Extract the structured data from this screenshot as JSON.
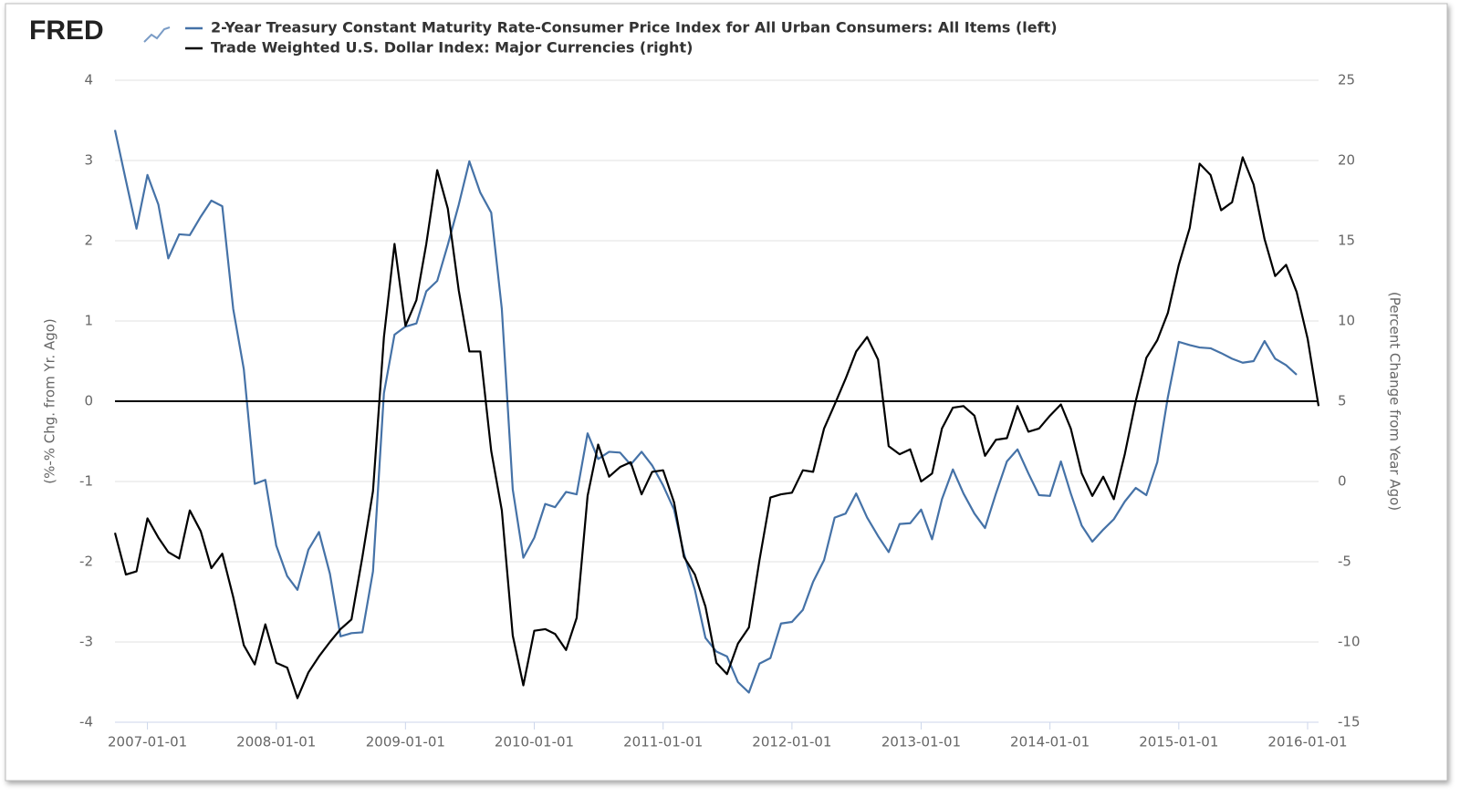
{
  "chart_data": {
    "type": "line",
    "logo": "FRED",
    "ylabel": "(%-% Chg. from Yr. Ago)",
    "y2label": "(Percent Change from Year Ago)",
    "xlim": [
      "2006-10-01",
      "2016-02-01"
    ],
    "xticks": [
      "2007-01-01",
      "2008-01-01",
      "2009-01-01",
      "2010-01-01",
      "2011-01-01",
      "2012-01-01",
      "2013-01-01",
      "2014-01-01",
      "2015-01-01",
      "2016-01-01"
    ],
    "ylim": [
      -4,
      4
    ],
    "yticks": [
      -4,
      -3,
      -2,
      -1,
      0,
      1,
      2,
      3,
      4
    ],
    "y2lim": [
      -15,
      25
    ],
    "y2ticks": [
      -15,
      -10,
      -5,
      0,
      5,
      10,
      15,
      20,
      25
    ],
    "grid": true,
    "hline": 0,
    "hline_color": "#000000",
    "x": [
      "2006-10-01",
      "2006-11-01",
      "2006-12-01",
      "2007-01-01",
      "2007-02-01",
      "2007-03-01",
      "2007-04-01",
      "2007-05-01",
      "2007-06-01",
      "2007-07-01",
      "2007-08-01",
      "2007-09-01",
      "2007-10-01",
      "2007-11-01",
      "2007-12-01",
      "2008-01-01",
      "2008-02-01",
      "2008-03-01",
      "2008-04-01",
      "2008-05-01",
      "2008-06-01",
      "2008-07-01",
      "2008-08-01",
      "2008-09-01",
      "2008-10-01",
      "2008-11-01",
      "2008-12-01",
      "2009-01-01",
      "2009-02-01",
      "2009-03-01",
      "2009-04-01",
      "2009-05-01",
      "2009-06-01",
      "2009-07-01",
      "2009-08-01",
      "2009-09-01",
      "2009-10-01",
      "2009-11-01",
      "2009-12-01",
      "2010-01-01",
      "2010-02-01",
      "2010-03-01",
      "2010-04-01",
      "2010-05-01",
      "2010-06-01",
      "2010-07-01",
      "2010-08-01",
      "2010-09-01",
      "2010-10-01",
      "2010-11-01",
      "2010-12-01",
      "2011-01-01",
      "2011-02-01",
      "2011-03-01",
      "2011-04-01",
      "2011-05-01",
      "2011-06-01",
      "2011-07-01",
      "2011-08-01",
      "2011-09-01",
      "2011-10-01",
      "2011-11-01",
      "2011-12-01",
      "2012-01-01",
      "2012-02-01",
      "2012-03-01",
      "2012-04-01",
      "2012-05-01",
      "2012-06-01",
      "2012-07-01",
      "2012-08-01",
      "2012-09-01",
      "2012-10-01",
      "2012-11-01",
      "2012-12-01",
      "2013-01-01",
      "2013-02-01",
      "2013-03-01",
      "2013-04-01",
      "2013-05-01",
      "2013-06-01",
      "2013-07-01",
      "2013-08-01",
      "2013-09-01",
      "2013-10-01",
      "2013-11-01",
      "2013-12-01",
      "2014-01-01",
      "2014-02-01",
      "2014-03-01",
      "2014-04-01",
      "2014-05-01",
      "2014-06-01",
      "2014-07-01",
      "2014-08-01",
      "2014-09-01",
      "2014-10-01",
      "2014-11-01",
      "2014-12-01",
      "2015-01-01",
      "2015-02-01",
      "2015-03-01",
      "2015-04-01",
      "2015-05-01",
      "2015-06-01",
      "2015-07-01",
      "2015-08-01",
      "2015-09-01",
      "2015-10-01",
      "2015-11-01",
      "2015-12-01",
      "2016-01-01",
      "2016-02-01"
    ],
    "series": [
      {
        "name": "2-Year Treasury Constant Maturity Rate-Consumer Price Index for All Urban Consumers: All Items (left)",
        "color": "#4572a7",
        "values": [
          3.38,
          2.75,
          2.15,
          2.82,
          2.45,
          1.78,
          2.08,
          2.07,
          2.3,
          2.5,
          2.43,
          1.15,
          0.4,
          -1.03,
          -0.98,
          -1.8,
          -2.18,
          -2.35,
          -1.85,
          -1.63,
          -2.15,
          -2.93,
          -2.89,
          -2.88,
          -2.12,
          0.1,
          0.83,
          0.93,
          0.97,
          1.37,
          1.5,
          1.95,
          2.45,
          2.99,
          2.6,
          2.35,
          1.15,
          -1.1,
          -1.95,
          -1.7,
          -1.28,
          -1.32,
          -1.13,
          -1.16,
          -0.4,
          -0.72,
          -0.63,
          -0.64,
          -0.79,
          -0.63,
          -0.8,
          -1.05,
          -1.35,
          -1.9,
          -2.35,
          -2.95,
          -3.12,
          -3.18,
          -3.5,
          -3.63,
          -3.27,
          -3.2,
          -2.77,
          -2.75,
          -2.6,
          -2.25,
          -1.98,
          -1.45,
          -1.4,
          -1.15,
          -1.45,
          -1.68,
          -1.88,
          -1.53,
          -1.52,
          -1.35,
          -1.72,
          -1.22,
          -0.85,
          -1.15,
          -1.4,
          -1.58,
          -1.15,
          -0.75,
          -0.6,
          -0.9,
          -1.17,
          -1.18,
          -0.75,
          -1.15,
          -1.55,
          -1.75,
          -1.6,
          -1.47,
          -1.25,
          -1.08,
          -1.17,
          -0.76,
          0.05,
          0.74,
          0.7,
          0.67,
          0.66,
          0.6,
          0.53,
          0.48,
          0.5,
          0.75,
          0.53,
          0.45,
          0.33,
          null,
          null
        ]
      },
      {
        "name": "Trade Weighted U.S. Dollar Index: Major Currencies (right)",
        "color": "#000000",
        "axis": "y2",
        "values": [
          -3.2,
          -5.8,
          -5.6,
          -2.3,
          -3.5,
          -4.4,
          -4.8,
          -1.8,
          -3.1,
          -5.4,
          -4.5,
          -7.2,
          -10.2,
          -11.4,
          -8.9,
          -11.3,
          -11.6,
          -13.5,
          -11.9,
          -10.9,
          -10.0,
          -9.2,
          -8.6,
          -4.7,
          -0.6,
          9.0,
          14.8,
          9.7,
          11.3,
          14.8,
          19.4,
          17.0,
          11.9,
          8.1,
          8.1,
          1.9,
          -1.8,
          -9.6,
          -12.7,
          -9.3,
          -9.2,
          -9.5,
          -10.5,
          -8.5,
          -0.9,
          2.3,
          0.3,
          0.9,
          1.2,
          -0.8,
          0.6,
          0.7,
          -1.3,
          -4.7,
          -5.8,
          -7.8,
          -11.3,
          -12.0,
          -10.1,
          -9.1,
          -4.9,
          -1.0,
          -0.8,
          -0.7,
          0.7,
          0.6,
          3.3,
          4.8,
          6.4,
          8.1,
          9.0,
          7.6,
          2.2,
          1.7,
          2.0,
          0.0,
          0.5,
          3.3,
          4.6,
          4.7,
          4.1,
          1.6,
          2.6,
          2.7,
          4.7,
          3.1,
          3.3,
          4.1,
          4.8,
          3.3,
          0.5,
          -0.9,
          0.3,
          -1.1,
          1.7,
          5.0,
          7.7,
          8.8,
          10.5,
          13.5,
          15.8,
          19.8,
          19.1,
          16.9,
          17.4,
          20.2,
          18.5,
          15.1,
          12.8,
          13.5,
          11.8,
          8.9,
          4.7
        ]
      }
    ]
  }
}
